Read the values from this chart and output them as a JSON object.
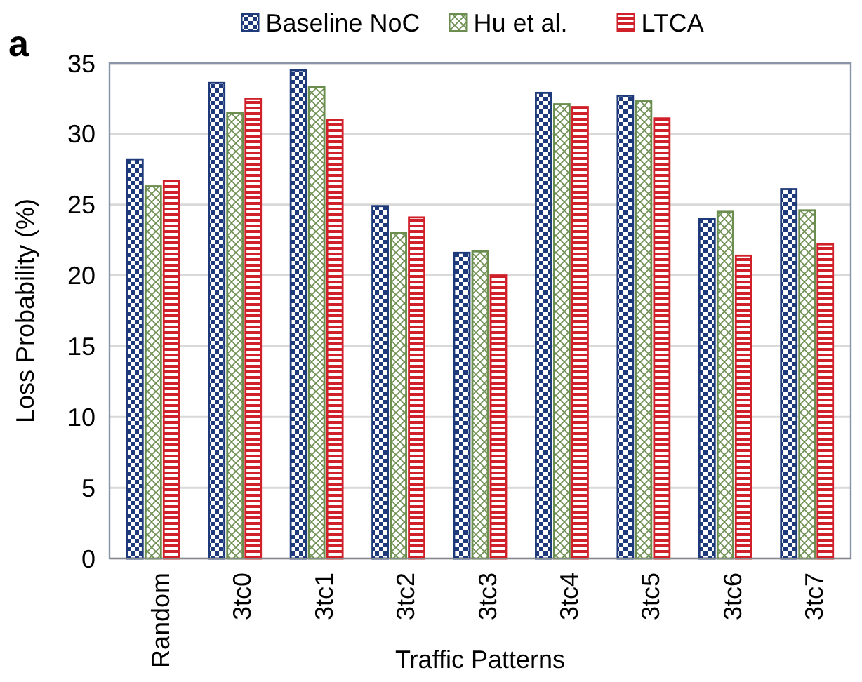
{
  "chart_data": {
    "type": "bar",
    "xlabel": "Traffic Patterns",
    "ylabel": "Loss Probability (%)",
    "annotations": [
      "a"
    ],
    "categories": [
      "Random",
      "3tc0",
      "3tc1",
      "3tc2",
      "3tc3",
      "3tc4",
      "3tc5",
      "3tc6",
      "3tc7"
    ],
    "series": [
      {
        "name": "Baseline NoC",
        "color": "#1f3a7a",
        "values": [
          28.2,
          33.6,
          34.5,
          24.9,
          21.6,
          32.9,
          32.7,
          24.0,
          26.1
        ]
      },
      {
        "name": "Hu et al.",
        "color": "#6b8e4e",
        "values": [
          26.3,
          31.5,
          33.3,
          23.0,
          21.7,
          32.1,
          32.3,
          24.5,
          24.6
        ]
      },
      {
        "name": "LTCA",
        "color": "#d0202a",
        "values": [
          26.7,
          32.5,
          31.0,
          24.1,
          20.0,
          31.9,
          31.1,
          21.4,
          22.2
        ]
      }
    ],
    "ylim": [
      0,
      35
    ],
    "yticks": [
      0,
      5,
      10,
      15,
      20,
      25,
      30,
      35
    ],
    "grid": "y",
    "legend": "top"
  }
}
